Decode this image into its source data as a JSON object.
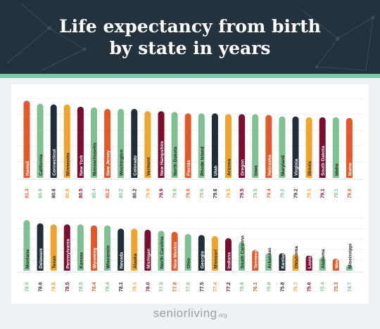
{
  "header": {
    "title_line1": "Life expectancy from birth",
    "title_line2": "by state in years"
  },
  "footer": {
    "brand": "seniorliving",
    "tld": ".org"
  },
  "colors": {
    "red": "#e05a2b",
    "green": "#7fc190",
    "dark": "#1f2e38",
    "orange": "#f0a430",
    "maroon": "#7b0d2e"
  },
  "chart_data": [
    {
      "type": "bar",
      "title": "",
      "xlabel": "",
      "ylabel": "",
      "categories": [
        "Hawaii",
        "California",
        "Connecticut",
        "Minnesota",
        "New York",
        "Massachusetts",
        "New Jersey",
        "Washington",
        "Colorado",
        "Vermont",
        "New Hampshire",
        "North Dakota",
        "Florida",
        "Rhode Island",
        "Utah",
        "Arizona",
        "Oregon",
        "Iowa",
        "Nebraska",
        "Maryland",
        "Virginia",
        "Illinois",
        "South Dakota",
        "Idaho",
        "Maine"
      ],
      "values": [
        81.3,
        80.9,
        80.8,
        80.8,
        80.5,
        80.4,
        80.2,
        80.2,
        80.2,
        79.9,
        79.9,
        79.8,
        79.6,
        79.6,
        79.6,
        79.5,
        79.5,
        79.5,
        79.4,
        79.2,
        79.2,
        79.1,
        79.1,
        79.1,
        79.0
      ],
      "value_labels": [
        "81.3",
        "80.9",
        "80.8",
        "80.8",
        "80.5",
        "80.4",
        "80.2",
        "80.2",
        "80.2",
        "79.9",
        "79.9",
        "79.8",
        "79.6",
        "79.6",
        "79.6",
        "79.5",
        "79.5",
        "79.5",
        "79.4",
        "79.2",
        "79.2",
        "79.1",
        "79.1",
        "79.1",
        "79.0"
      ],
      "bar_colors": [
        "red",
        "green",
        "dark",
        "orange",
        "maroon",
        "green",
        "red",
        "green",
        "dark",
        "orange",
        "maroon",
        "green",
        "red",
        "green",
        "dark",
        "orange",
        "maroon",
        "green",
        "red",
        "green",
        "dark",
        "orange",
        "maroon",
        "green",
        "red"
      ],
      "ylim": [
        71,
        81.6
      ],
      "grid": true,
      "legend": "none"
    },
    {
      "type": "bar",
      "title": "",
      "xlabel": "",
      "ylabel": "",
      "categories": [
        "Montana",
        "Delaware",
        "Texas",
        "Pennsylvania",
        "Kansas",
        "Wyoming",
        "Wisconsin",
        "Nevada",
        "Alaska",
        "Michigan",
        "North Carolina",
        "New Mexico",
        "Ohio",
        "Georgia",
        "Missouri",
        "Indiana",
        "South Carolina",
        "Tennessee",
        "Arkansas",
        "Kentucky",
        "Oklahoma",
        "Louisiana",
        "Alabama",
        "West Virginia",
        "Mississippi"
      ],
      "values": [
        78.9,
        78.6,
        78.5,
        78.5,
        78.5,
        78.4,
        78.4,
        78.1,
        78.1,
        78.0,
        77.9,
        77.8,
        77.6,
        77.5,
        77.4,
        77.2,
        76.8,
        76.1,
        75.8,
        75.8,
        75.7,
        75.6,
        75.4,
        75.3,
        74.7
      ],
      "value_labels": [
        "78.9",
        "78.6",
        "78.5",
        "78.5",
        "78.5",
        "78.4",
        "78.4",
        "78.1",
        "78.1",
        "78.0",
        "77.9",
        "77.8",
        "77.6",
        "77.5",
        "77.4",
        "77.2",
        "76.8",
        "76.1",
        "75.8",
        "75.8",
        "75.7",
        "75.6",
        "75.4",
        "75.3",
        "74.7"
      ],
      "bar_colors": [
        "green",
        "dark",
        "orange",
        "maroon",
        "green",
        "red",
        "green",
        "dark",
        "orange",
        "maroon",
        "green",
        "red",
        "green",
        "dark",
        "orange",
        "maroon",
        "green",
        "red",
        "green",
        "dark",
        "orange",
        "maroon",
        "green",
        "red",
        "green"
      ],
      "ylim": [
        74.15,
        79.1
      ],
      "grid": true,
      "legend": "none"
    }
  ]
}
